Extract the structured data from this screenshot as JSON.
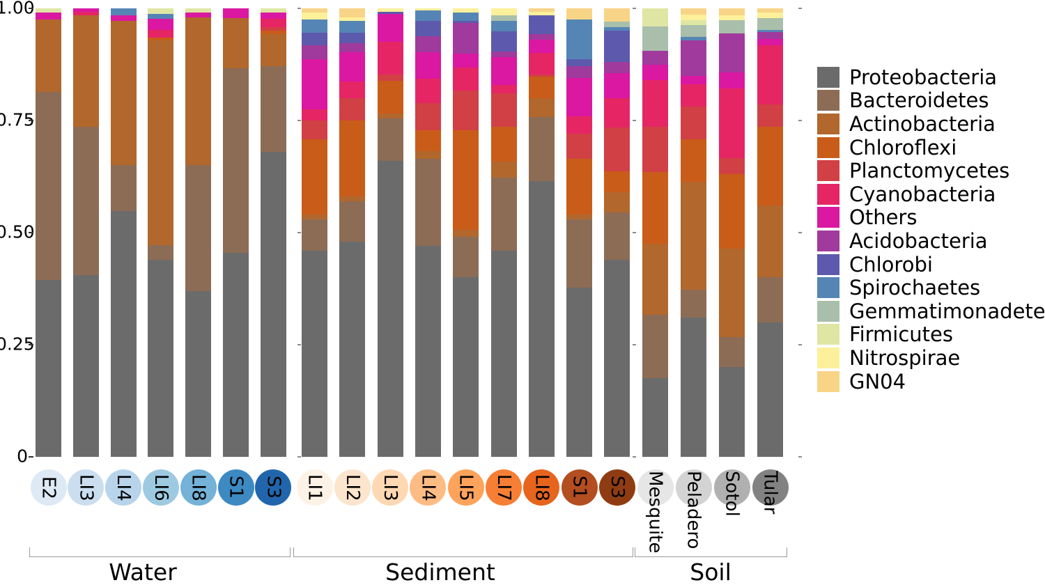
{
  "figure": {
    "description": "Stacked bar chart of relative abundance of bacterial phyla across Water, Sediment and Soil samples"
  },
  "chart_data": {
    "type": "bar",
    "stacked": true,
    "normalized": true,
    "ylim": [
      0,
      1
    ],
    "grid": false,
    "legend_position": "right",
    "yticks": [
      {
        "label": "1.00",
        "value": 1.0
      },
      {
        "label": "0.75",
        "value": 0.75
      },
      {
        "label": "0.50",
        "value": 0.5
      },
      {
        "label": "0.25",
        "value": 0.25
      },
      {
        "label": "0",
        "value": 0.0
      }
    ],
    "taxa": [
      {
        "name": "Proteobacteria",
        "color": "#6b6b6b"
      },
      {
        "name": "Bacteroidetes",
        "color": "#8d6c55"
      },
      {
        "name": "Actinobacteria",
        "color": "#b2672c"
      },
      {
        "name": "Chloroflexi",
        "color": "#c95c19"
      },
      {
        "name": "Planctomycetes",
        "color": "#d04045"
      },
      {
        "name": "Cyanobacteria",
        "color": "#e62565"
      },
      {
        "name": "Others",
        "color": "#da18a1"
      },
      {
        "name": "Acidobacteria",
        "color": "#a03a9c"
      },
      {
        "name": "Chlorobi",
        "color": "#5d5aae"
      },
      {
        "name": "Spirochaetes",
        "color": "#5585b5"
      },
      {
        "name": "Gemmatimonadetes",
        "color": "#a9bfab"
      },
      {
        "name": "Firmicutes",
        "color": "#dfe6a4"
      },
      {
        "name": "Nitrospirae",
        "color": "#fdf09b"
      },
      {
        "name": "GN04",
        "color": "#f8d487"
      }
    ],
    "groups": [
      {
        "label": "Water",
        "samples": [
          {
            "id": "E2",
            "circle_color": "#dde9f5",
            "values": [
              0.394,
              0.42,
              0.161,
              0,
              0,
              0,
              0.015,
              0,
              0,
              0,
              0,
              0.01,
              0,
              0
            ]
          },
          {
            "id": "LI3",
            "circle_color": "#cbdeef",
            "values": [
              0.405,
              0.331,
              0.249,
              0,
              0,
              0.008,
              0.007,
              0,
              0,
              0,
              0,
              0,
              0,
              0
            ]
          },
          {
            "id": "LI4",
            "circle_color": "#b7d4ea",
            "values": [
              0.548,
              0.102,
              0.322,
              0,
              0,
              0,
              0.013,
              0,
              0,
              0.015,
              0,
              0,
              0,
              0
            ]
          },
          {
            "id": "LI6",
            "circle_color": "#9ecae1",
            "values": [
              0.44,
              0.032,
              0.456,
              0.007,
              0,
              0.017,
              0.025,
              0,
              0,
              0.011,
              0,
              0.012,
              0,
              0
            ]
          },
          {
            "id": "LI8",
            "circle_color": "#74b2d8",
            "values": [
              0.37,
              0.28,
              0.33,
              0,
              0,
              0,
              0.01,
              0,
              0,
              0,
              0,
              0.01,
              0,
              0
            ]
          },
          {
            "id": "S1",
            "circle_color": "#3d8ac2",
            "values": [
              0.455,
              0.411,
              0.112,
              0,
              0,
              0,
              0.022,
              0,
              0,
              0,
              0,
              0,
              0,
              0
            ]
          },
          {
            "id": "S3",
            "circle_color": "#2166ac",
            "values": [
              0.68,
              0.191,
              0.072,
              0.007,
              0.008,
              0.018,
              0.014,
              0,
              0,
              0,
              0,
              0.01,
              0,
              0
            ]
          }
        ]
      },
      {
        "label": "Sediment",
        "samples": [
          {
            "id": "LI1",
            "circle_color": "#fdf2e6",
            "values": [
              0.46,
              0.07,
              0.01,
              0.168,
              0.042,
              0.025,
              0.112,
              0.031,
              0.028,
              0.029,
              0,
              0,
              0.015,
              0.01
            ]
          },
          {
            "id": "LI2",
            "circle_color": "#fce5cc",
            "values": [
              0.48,
              0.09,
              0.01,
              0.17,
              0.05,
              0.037,
              0.065,
              0.02,
              0.024,
              0.026,
              0,
              0,
              0.008,
              0.02
            ]
          },
          {
            "id": "LI3",
            "circle_color": "#fdd8b3",
            "values": [
              0.66,
              0.095,
              0.01,
              0.073,
              0.015,
              0.072,
              0.063,
              0,
              0.004,
              0,
              0,
              0,
              0.008,
              0
            ]
          },
          {
            "id": "LI4",
            "circle_color": "#fdbc84",
            "values": [
              0.47,
              0.195,
              0.017,
              0.046,
              0.061,
              0.054,
              0.059,
              0.036,
              0.034,
              0.023,
              0,
              0,
              0.005,
              0
            ]
          },
          {
            "id": "LI5",
            "circle_color": "#fda35b",
            "values": [
              0.4,
              0.09,
              0.016,
              0.222,
              0.089,
              0.051,
              0.031,
              0.068,
              0.005,
              0.018,
              0,
              0,
              0.01,
              0
            ]
          },
          {
            "id": "LI7",
            "circle_color": "#f67f35",
            "values": [
              0.46,
              0.163,
              0.035,
              0.078,
              0.075,
              0.018,
              0.062,
              0.013,
              0.045,
              0.023,
              0.013,
              0,
              0.015,
              0
            ]
          },
          {
            "id": "LI8",
            "circle_color": "#e7641c",
            "values": [
              0.615,
              0.143,
              0.042,
              0.048,
              0.005,
              0.047,
              0.03,
              0.012,
              0.043,
              0,
              0,
              0,
              0.008,
              0.007
            ]
          },
          {
            "id": "S1",
            "circle_color": "#b34e20",
            "values": [
              0.377,
              0.153,
              0.01,
              0.124,
              0.056,
              0.039,
              0.086,
              0.026,
              0.016,
              0.088,
              0,
              0,
              0,
              0.025
            ]
          },
          {
            "id": "S3",
            "circle_color": "#8f3c13",
            "values": [
              0.44,
              0.105,
              0.045,
              0.047,
              0.098,
              0.065,
              0.055,
              0.025,
              0.07,
              0.008,
              0.012,
              0,
              0,
              0.03
            ]
          }
        ]
      },
      {
        "label": "Soil",
        "samples": [
          {
            "id": "Mesquite",
            "circle_color": "#e6e6e6",
            "values": [
              0.175,
              0.142,
              0.158,
              0.16,
              0.101,
              0.104,
              0.034,
              0.031,
              0,
              0,
              0.055,
              0.04,
              0,
              0
            ]
          },
          {
            "id": "Peladero",
            "circle_color": "#d3d3d3",
            "values": [
              0.31,
              0.062,
              0.241,
              0.095,
              0.073,
              0.05,
              0.018,
              0.08,
              0,
              0.008,
              0.025,
              0.012,
              0.012,
              0.014
            ]
          },
          {
            "id": "Sotol",
            "circle_color": "#b0b0b0",
            "values": [
              0.2,
              0.067,
              0.198,
              0.166,
              0.035,
              0.155,
              0.036,
              0.087,
              0,
              0,
              0.03,
              0,
              0.011,
              0.015
            ]
          },
          {
            "id": "Tular",
            "circle_color": "#828282",
            "values": [
              0.3,
              0.1,
              0.16,
              0.176,
              0.05,
              0.131,
              0.015,
              0.015,
              0,
              0.005,
              0.027,
              0,
              0.011,
              0.01
            ]
          }
        ]
      }
    ]
  }
}
